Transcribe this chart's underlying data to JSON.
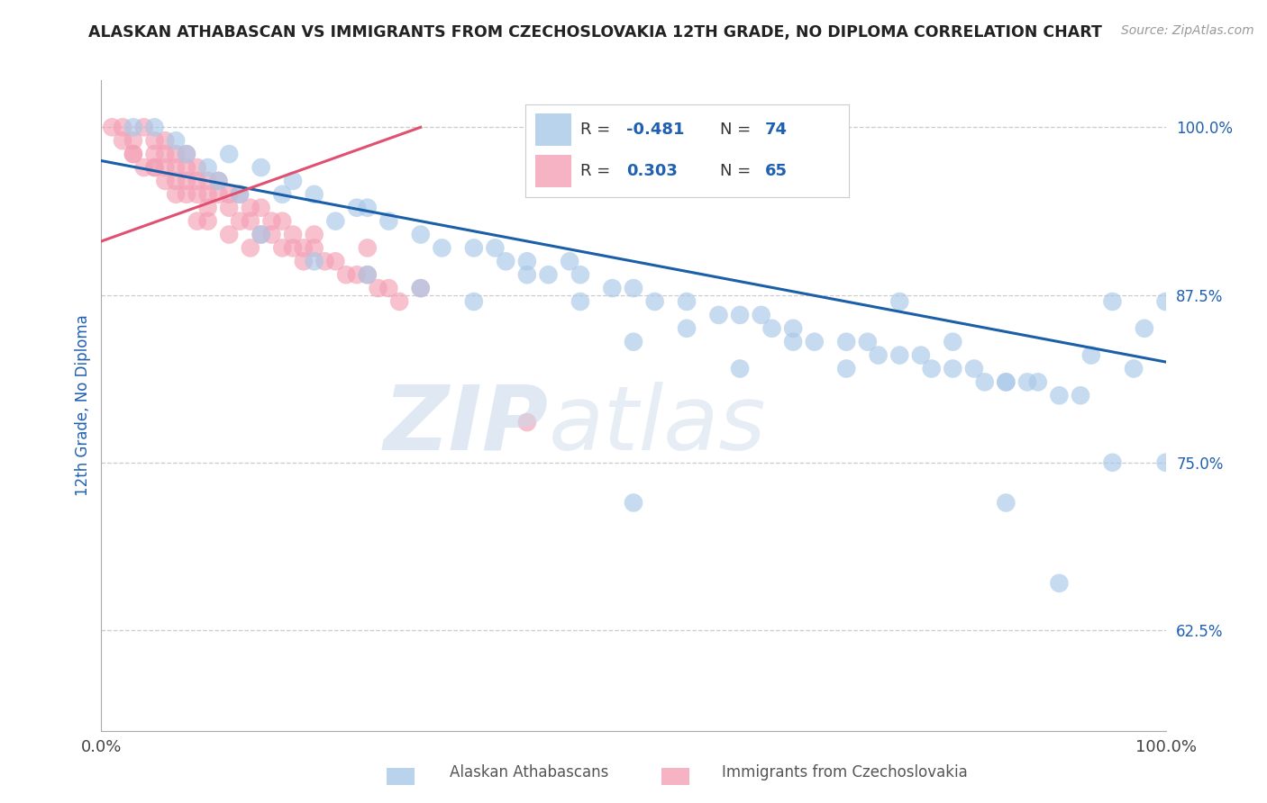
{
  "title": "ALASKAN ATHABASCAN VS IMMIGRANTS FROM CZECHOSLOVAKIA 12TH GRADE, NO DIPLOMA CORRELATION CHART",
  "source_text": "Source: ZipAtlas.com",
  "ylabel": "12th Grade, No Diploma",
  "xmin": 0.0,
  "xmax": 100.0,
  "ymin": 55.0,
  "ymax": 103.5,
  "yticks": [
    62.5,
    75.0,
    87.5,
    100.0
  ],
  "ytick_labels": [
    "62.5%",
    "75.0%",
    "87.5%",
    "100.0%"
  ],
  "legend_r_blue": "-0.481",
  "legend_n_blue": "74",
  "legend_r_pink": "0.303",
  "legend_n_pink": "65",
  "blue_color": "#a8c8e8",
  "pink_color": "#f4a0b5",
  "blue_line_color": "#1a5fa8",
  "pink_line_color": "#e05070",
  "text_blue": "#2060b0",
  "blue_scatter_x": [
    3,
    5,
    7,
    8,
    10,
    11,
    12,
    13,
    15,
    17,
    18,
    20,
    22,
    24,
    25,
    27,
    30,
    32,
    35,
    37,
    38,
    40,
    42,
    44,
    45,
    48,
    50,
    52,
    55,
    58,
    60,
    62,
    63,
    65,
    67,
    70,
    72,
    73,
    75,
    77,
    78,
    80,
    82,
    83,
    85,
    87,
    88,
    90,
    92,
    93,
    95,
    97,
    98,
    100,
    15,
    20,
    25,
    30,
    35,
    40,
    45,
    50,
    55,
    60,
    65,
    70,
    75,
    80,
    85,
    90,
    95,
    100,
    50,
    85
  ],
  "blue_scatter_y": [
    100,
    100,
    99,
    98,
    97,
    96,
    98,
    95,
    97,
    95,
    96,
    95,
    93,
    94,
    94,
    93,
    92,
    91,
    91,
    91,
    90,
    90,
    89,
    90,
    89,
    88,
    88,
    87,
    87,
    86,
    86,
    86,
    85,
    85,
    84,
    84,
    84,
    83,
    83,
    83,
    82,
    82,
    82,
    81,
    81,
    81,
    81,
    80,
    80,
    83,
    87,
    82,
    85,
    87,
    92,
    90,
    89,
    88,
    87,
    89,
    87,
    84,
    85,
    82,
    84,
    82,
    87,
    84,
    81,
    66,
    75,
    75,
    72,
    72
  ],
  "pink_scatter_x": [
    1,
    2,
    2,
    3,
    3,
    4,
    4,
    5,
    5,
    5,
    6,
    6,
    6,
    7,
    7,
    7,
    8,
    8,
    8,
    9,
    9,
    9,
    10,
    10,
    10,
    11,
    11,
    12,
    12,
    13,
    13,
    14,
    14,
    15,
    15,
    16,
    16,
    17,
    17,
    18,
    18,
    19,
    19,
    20,
    20,
    21,
    22,
    23,
    24,
    25,
    26,
    27,
    28,
    6,
    8,
    10,
    12,
    14,
    3,
    5,
    7,
    9,
    40,
    25,
    30
  ],
  "pink_scatter_y": [
    100,
    100,
    99,
    99,
    98,
    100,
    97,
    99,
    98,
    97,
    99,
    98,
    97,
    98,
    97,
    96,
    98,
    97,
    96,
    97,
    96,
    95,
    96,
    95,
    94,
    96,
    95,
    95,
    94,
    95,
    93,
    94,
    93,
    94,
    92,
    93,
    92,
    93,
    91,
    92,
    91,
    91,
    90,
    92,
    91,
    90,
    90,
    89,
    89,
    89,
    88,
    88,
    87,
    96,
    95,
    93,
    92,
    91,
    98,
    97,
    95,
    93,
    78,
    91,
    88
  ],
  "blue_line_start_x": 0,
  "blue_line_start_y": 97.5,
  "blue_line_end_x": 100,
  "blue_line_end_y": 82.5,
  "pink_line_start_x": 0,
  "pink_line_start_y": 91.5,
  "pink_line_end_x": 30,
  "pink_line_end_y": 100.0
}
